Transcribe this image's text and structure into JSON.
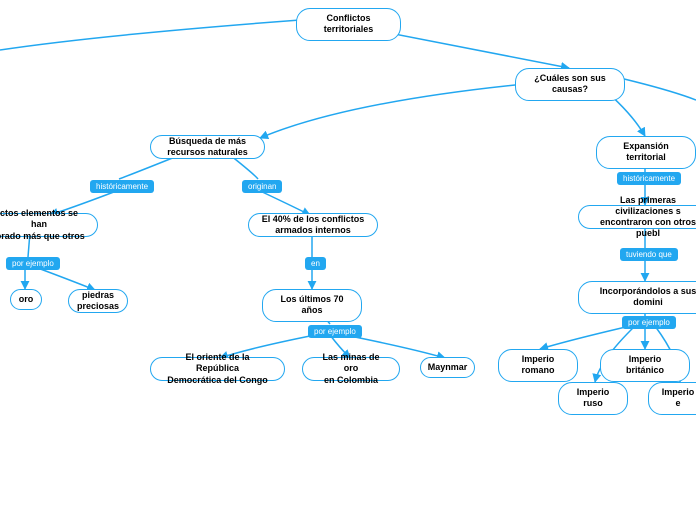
{
  "colors": {
    "node_border": "#22a7f0",
    "node_fill": "#ffffff",
    "link_bg": "#22a7f0",
    "link_text": "#ffffff",
    "edge": "#22a7f0"
  },
  "nodes": {
    "root": {
      "label": "Conflictos territoriales"
    },
    "causas": {
      "label": "¿Cuáles son sus causas?"
    },
    "busqueda": {
      "label": "Búsqueda de más\nrecursos naturales"
    },
    "expansion": {
      "label": "Expansión territorial"
    },
    "elementos": {
      "label": "ctos elementos se han\nlorado más que otros"
    },
    "conflictos40": {
      "label": "El 40% de los conflictos\narmados internos"
    },
    "primeras": {
      "label": "Las primeras civilizaciones s\nencontraron con otros puebl"
    },
    "oro": {
      "label": "oro"
    },
    "piedras": {
      "label": "piedras\npreciosas"
    },
    "ultimos70": {
      "label": "Los últimos 70 años"
    },
    "incorporando": {
      "label": "Incorporándolos a sus domini"
    },
    "oriente": {
      "label": "El oriente de la República\nDemocrática del Congo"
    },
    "minas": {
      "label": "Las minas de oro\nen Colombia"
    },
    "maynmar": {
      "label": "Maynmar"
    },
    "romano": {
      "label": "Imperio romano"
    },
    "britanico": {
      "label": "Imperio británico"
    },
    "ruso": {
      "label": "Imperio ruso"
    },
    "imperio_e": {
      "label": "Imperio e"
    }
  },
  "linkLabels": {
    "hist1": "históricamente",
    "originan": "originan",
    "hist2": "históricamente",
    "porej1": "por ejemplo",
    "en": "en",
    "tuviendo": "tuviendo que",
    "porej2": "por ejemplo",
    "porej3": "por ejemplo"
  }
}
